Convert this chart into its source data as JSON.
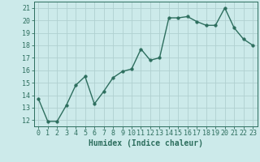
{
  "x": [
    0,
    1,
    2,
    3,
    4,
    5,
    6,
    7,
    8,
    9,
    10,
    11,
    12,
    13,
    14,
    15,
    16,
    17,
    18,
    19,
    20,
    21,
    22,
    23
  ],
  "y": [
    13.7,
    11.9,
    11.9,
    13.2,
    14.8,
    15.5,
    13.3,
    14.3,
    15.4,
    15.9,
    16.1,
    17.7,
    16.8,
    17.0,
    20.2,
    20.2,
    20.3,
    19.9,
    19.6,
    19.6,
    21.0,
    19.4,
    18.5,
    18.0
  ],
  "line_color": "#2d6e5e",
  "marker": "o",
  "markersize": 2.5,
  "linewidth": 1.0,
  "bg_color": "#cceaea",
  "grid_color": "#b0d0d0",
  "xlabel": "Humidex (Indice chaleur)",
  "xlabel_fontsize": 7,
  "ylabel_ticks": [
    12,
    13,
    14,
    15,
    16,
    17,
    18,
    19,
    20,
    21
  ],
  "xtick_labels": [
    "0",
    "1",
    "2",
    "3",
    "4",
    "5",
    "6",
    "7",
    "8",
    "9",
    "10",
    "11",
    "12",
    "13",
    "14",
    "15",
    "16",
    "17",
    "18",
    "19",
    "20",
    "21",
    "22",
    "23"
  ],
  "xlim": [
    -0.5,
    23.5
  ],
  "ylim": [
    11.5,
    21.5
  ],
  "tick_fontsize": 6,
  "tick_color": "#2d6e5e"
}
